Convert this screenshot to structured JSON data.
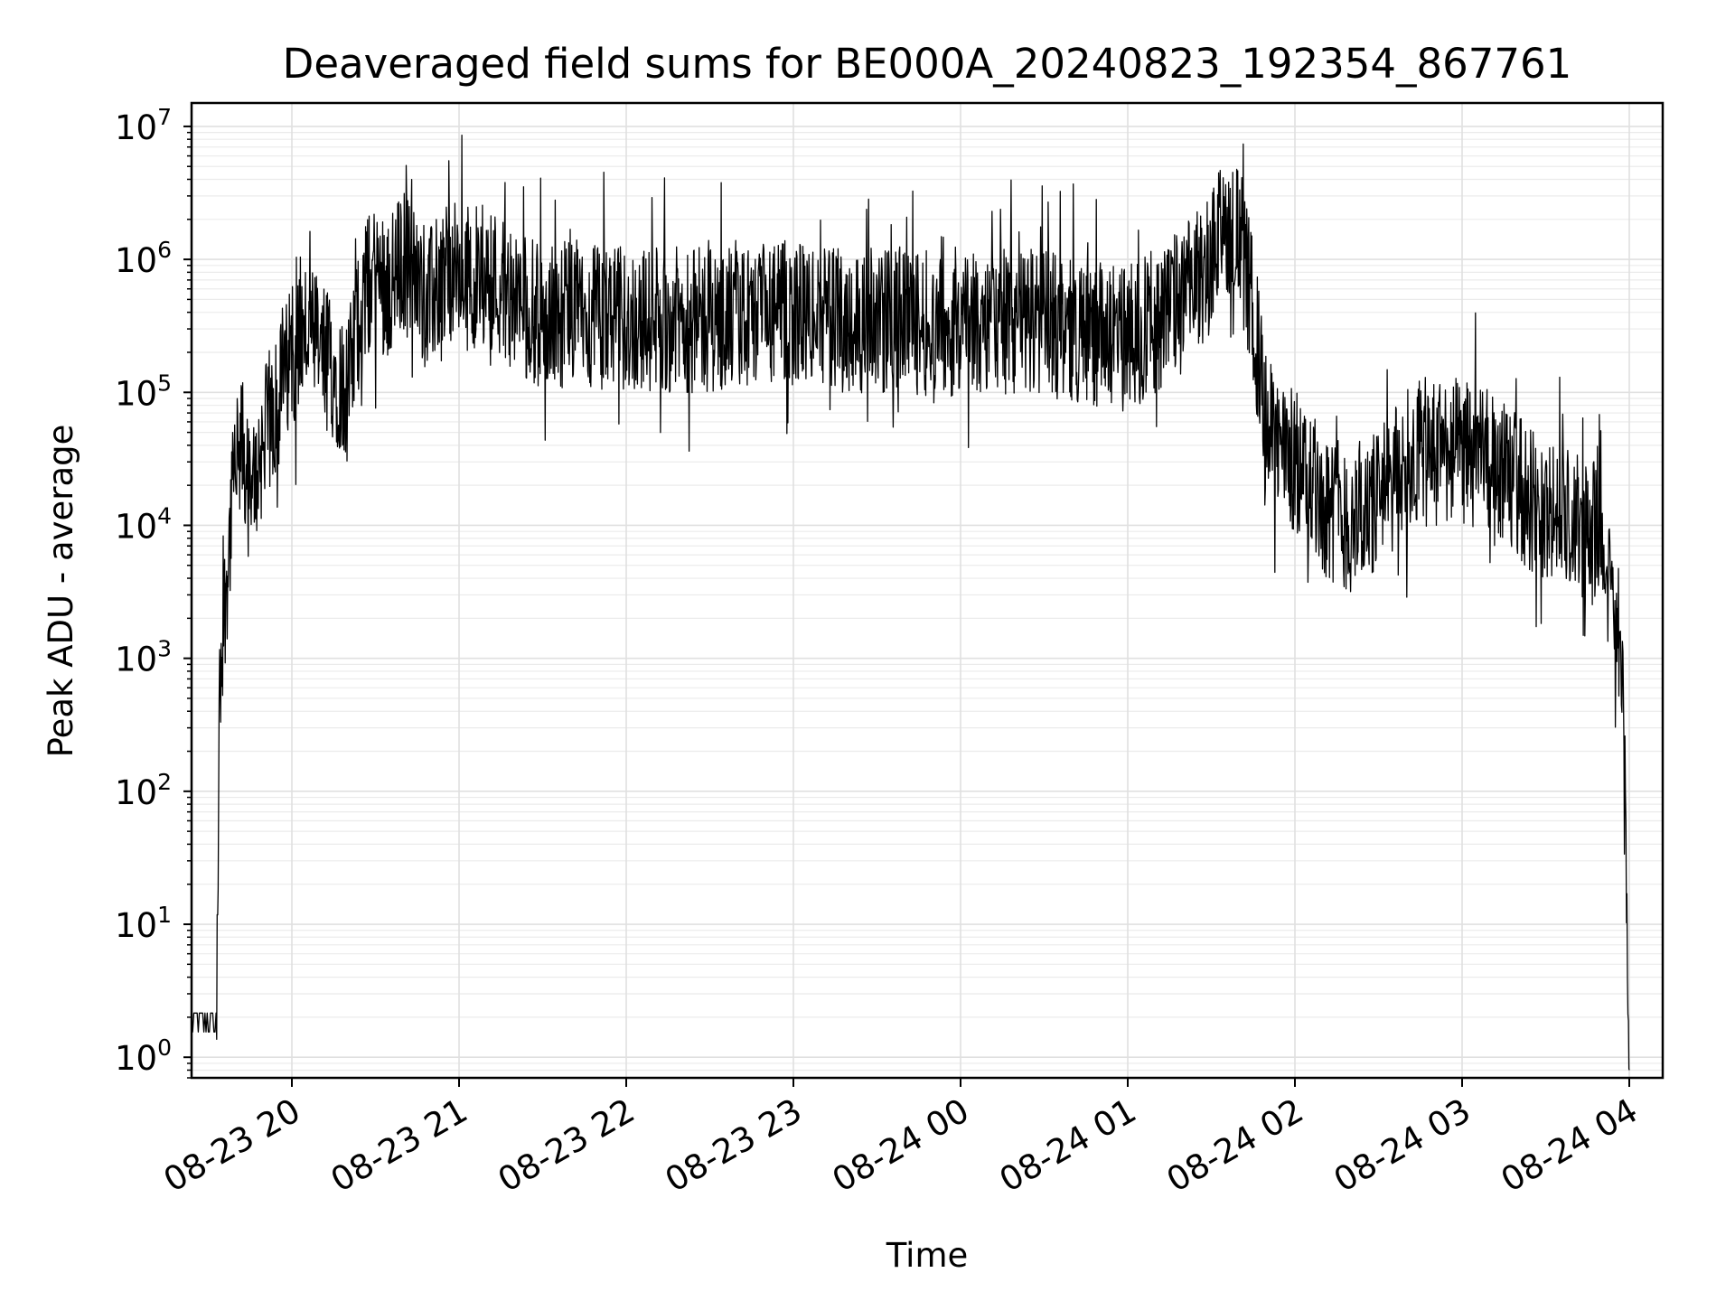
{
  "chart_data": {
    "type": "line",
    "title": "Deaveraged field sums for BE000A_20240823_192354_867761",
    "xlabel": "Time",
    "ylabel": "Peak ADU - average",
    "yscale": "log",
    "grid": true,
    "xlim": [
      "2024-08-23 19:24",
      "2024-08-24 04:12"
    ],
    "ylim": [
      0.7,
      15000000
    ],
    "x_ticks": [
      {
        "label": "08-23 20",
        "value": "2024-08-23 20:00"
      },
      {
        "label": "08-23 21",
        "value": "2024-08-23 21:00"
      },
      {
        "label": "08-23 22",
        "value": "2024-08-23 22:00"
      },
      {
        "label": "08-23 23",
        "value": "2024-08-23 23:00"
      },
      {
        "label": "08-24 00",
        "value": "2024-08-24 00:00"
      },
      {
        "label": "08-24 01",
        "value": "2024-08-24 01:00"
      },
      {
        "label": "08-24 02",
        "value": "2024-08-24 02:00"
      },
      {
        "label": "08-24 03",
        "value": "2024-08-24 03:00"
      },
      {
        "label": "08-24 04",
        "value": "2024-08-24 04:00"
      }
    ],
    "y_ticks": [
      {
        "base": "10",
        "exp": "0",
        "value": 1
      },
      {
        "base": "10",
        "exp": "1",
        "value": 10
      },
      {
        "base": "10",
        "exp": "2",
        "value": 100
      },
      {
        "base": "10",
        "exp": "3",
        "value": 1000
      },
      {
        "base": "10",
        "exp": "4",
        "value": 10000
      },
      {
        "base": "10",
        "exp": "5",
        "value": 100000
      },
      {
        "base": "10",
        "exp": "6",
        "value": 1000000
      },
      {
        "base": "10",
        "exp": "7",
        "value": 10000000
      }
    ],
    "series": [
      {
        "color": "#000000",
        "x": [
          "2024-08-23 19:24",
          "2024-08-23 19:33",
          "2024-08-23 19:34",
          "2024-08-23 19:36",
          "2024-08-23 19:38",
          "2024-08-23 19:40",
          "2024-08-23 19:42",
          "2024-08-23 19:45",
          "2024-08-23 19:48",
          "2024-08-23 19:52",
          "2024-08-23 19:56",
          "2024-08-23 20:00",
          "2024-08-23 20:05",
          "2024-08-23 20:10",
          "2024-08-23 20:15",
          "2024-08-23 20:20",
          "2024-08-23 20:25",
          "2024-08-23 20:30",
          "2024-08-23 20:35",
          "2024-08-23 20:40",
          "2024-08-23 20:45",
          "2024-08-23 20:50",
          "2024-08-23 20:55",
          "2024-08-23 21:00",
          "2024-08-23 21:10",
          "2024-08-23 21:20",
          "2024-08-23 21:30",
          "2024-08-23 21:40",
          "2024-08-23 22:00",
          "2024-08-23 22:20",
          "2024-08-23 22:40",
          "2024-08-23 23:00",
          "2024-08-23 23:20",
          "2024-08-23 23:40",
          "2024-08-24 00:00",
          "2024-08-24 00:20",
          "2024-08-24 00:40",
          "2024-08-24 01:00",
          "2024-08-24 01:10",
          "2024-08-24 01:20",
          "2024-08-24 01:30",
          "2024-08-24 01:36",
          "2024-08-24 01:40",
          "2024-08-24 01:45",
          "2024-08-24 01:50",
          "2024-08-24 02:00",
          "2024-08-24 02:10",
          "2024-08-24 02:20",
          "2024-08-24 02:30",
          "2024-08-24 02:40",
          "2024-08-24 02:50",
          "2024-08-24 03:00",
          "2024-08-24 03:10",
          "2024-08-24 03:20",
          "2024-08-24 03:30",
          "2024-08-24 03:40",
          "2024-08-24 03:50",
          "2024-08-24 03:54",
          "2024-08-24 03:58",
          "2024-08-24 04:00"
        ],
        "y": [
          1.8,
          1.8,
          500,
          3000,
          10000,
          25000,
          40000,
          15000,
          30000,
          60000,
          100000,
          200000,
          300000,
          200000,
          150000,
          100000,
          500000,
          800000,
          600000,
          1000000,
          700000,
          500000,
          900000,
          700000,
          800000,
          500000,
          350000,
          400000,
          350000,
          350000,
          350000,
          400000,
          350000,
          350000,
          300000,
          350000,
          300000,
          250000,
          350000,
          500000,
          1000000,
          2000000,
          1500000,
          400000,
          50000,
          30000,
          15000,
          10000,
          15000,
          30000,
          40000,
          35000,
          30000,
          20000,
          12000,
          10000,
          8000,
          3000,
          500,
          0.8
        ]
      }
    ]
  }
}
